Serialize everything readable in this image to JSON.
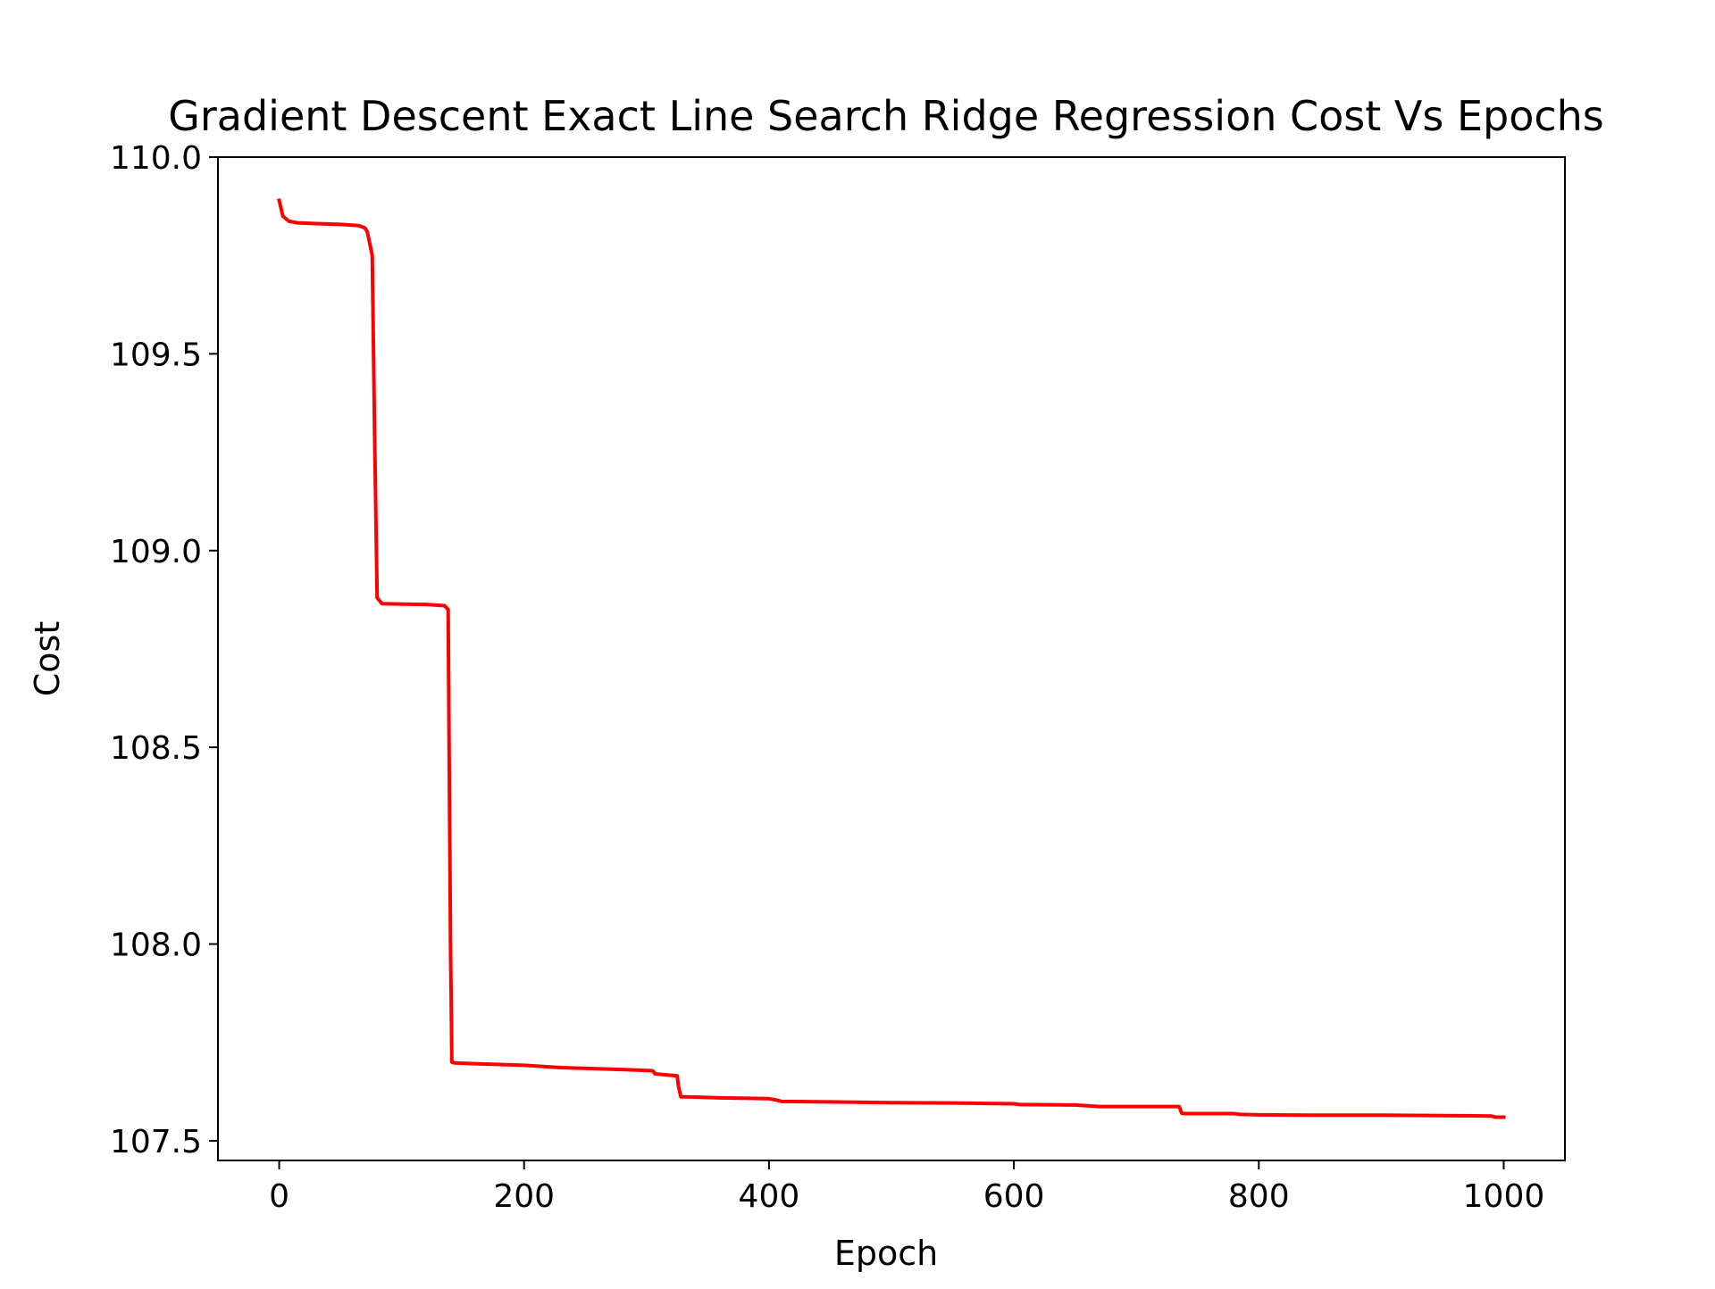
{
  "chart_data": {
    "type": "line",
    "title": "Gradient Descent Exact Line Search Ridge Regression Cost Vs Epochs",
    "xlabel": "Epoch",
    "ylabel": "Cost",
    "xlim": [
      -50,
      1050
    ],
    "ylim": [
      107.45,
      110.0
    ],
    "xticks": [
      {
        "value": 0,
        "label": "0"
      },
      {
        "value": 200,
        "label": "200"
      },
      {
        "value": 400,
        "label": "400"
      },
      {
        "value": 600,
        "label": "600"
      },
      {
        "value": 800,
        "label": "800"
      },
      {
        "value": 1000,
        "label": "1000"
      }
    ],
    "yticks": [
      {
        "value": 107.5,
        "label": "107.5"
      },
      {
        "value": 108.0,
        "label": "108.0"
      },
      {
        "value": 108.5,
        "label": "108.5"
      },
      {
        "value": 109.0,
        "label": "109.0"
      },
      {
        "value": 109.5,
        "label": "109.5"
      },
      {
        "value": 110.0,
        "label": "110.0"
      }
    ],
    "grid": false,
    "series": [
      {
        "color": "#ff0000",
        "x": [
          0,
          3,
          8,
          15,
          30,
          50,
          65,
          70,
          72,
          74,
          76,
          78,
          80,
          84,
          100,
          120,
          135,
          138,
          139,
          140,
          140.5,
          141,
          143,
          160,
          200,
          220,
          230,
          260,
          290,
          305,
          307,
          325,
          326,
          328,
          340,
          360,
          400,
          407,
          410,
          450,
          500,
          550,
          600,
          605,
          650,
          660,
          670,
          700,
          735,
          737,
          740,
          780,
          785,
          800,
          840,
          900,
          950,
          990,
          993,
          1000
        ],
        "y": [
          109.89,
          109.85,
          109.837,
          109.833,
          109.831,
          109.829,
          109.826,
          109.82,
          109.81,
          109.78,
          109.75,
          109.28,
          108.88,
          108.865,
          108.864,
          108.863,
          108.86,
          108.85,
          108.4,
          107.97,
          107.85,
          107.7,
          107.698,
          107.696,
          107.692,
          107.688,
          107.686,
          107.683,
          107.68,
          107.678,
          107.67,
          107.665,
          107.64,
          107.612,
          107.611,
          107.609,
          107.607,
          107.603,
          107.6,
          107.599,
          107.597,
          107.596,
          107.594,
          107.592,
          107.591,
          107.589,
          107.587,
          107.587,
          107.587,
          107.57,
          107.569,
          107.569,
          107.567,
          107.566,
          107.565,
          107.565,
          107.564,
          107.563,
          107.56,
          107.56
        ]
      }
    ]
  }
}
